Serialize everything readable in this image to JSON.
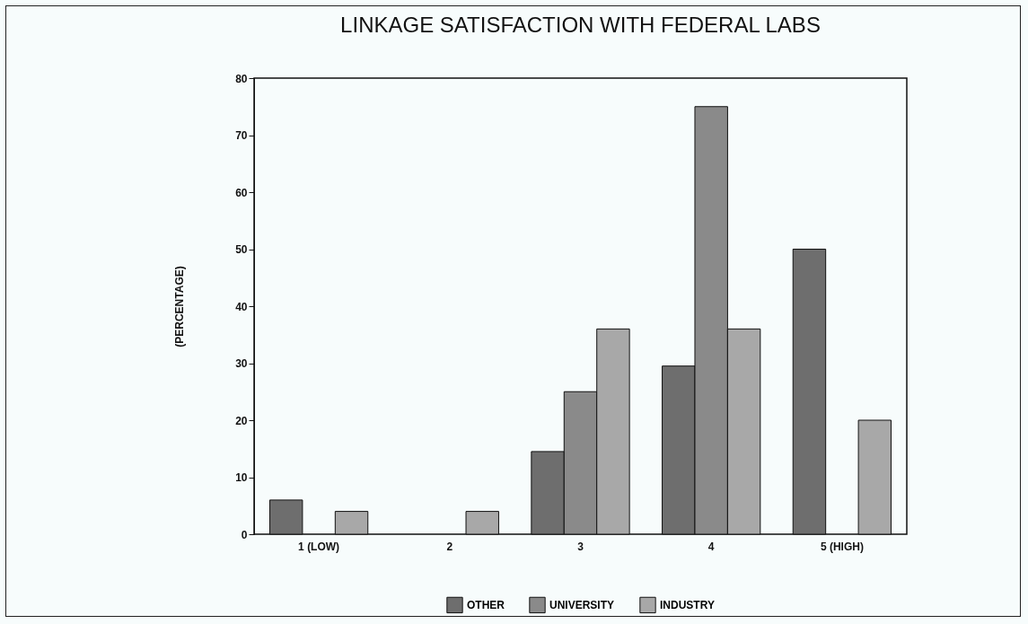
{
  "chart_data": {
    "type": "bar",
    "title": "LINKAGE SATISFACTION WITH FEDERAL LABS",
    "ylabel": "(PERCENTAGE)",
    "categories": [
      "1 (LOW)",
      "2",
      "3",
      "4",
      "5 (HIGH)"
    ],
    "series": [
      {
        "name": "OTHER",
        "color": "#6e6e6e",
        "values": [
          6,
          null,
          14.5,
          29.5,
          50
        ]
      },
      {
        "name": "UNIVERSITY",
        "color": "#8a8a8a",
        "values": [
          null,
          null,
          25,
          75,
          null
        ]
      },
      {
        "name": "INDUSTRY",
        "color": "#a8a8a8",
        "values": [
          4,
          4,
          36,
          36,
          20
        ]
      }
    ],
    "ylim": [
      0,
      80
    ],
    "yticks": [
      0,
      10,
      20,
      30,
      40,
      50,
      60,
      70,
      80
    ],
    "legend": "bottom"
  }
}
